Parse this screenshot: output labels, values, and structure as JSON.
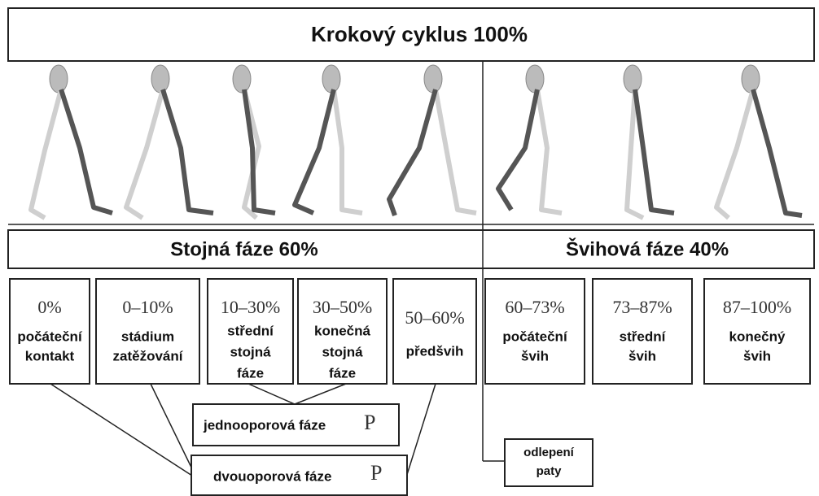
{
  "header": {
    "title": "Krokový cyklus 100%"
  },
  "phases": [
    {
      "label": "Stojná fáze 60%"
    },
    {
      "label": "Švihová fáze 40%"
    }
  ],
  "subphases": [
    {
      "percent": "0%",
      "lines": [
        "počáteční",
        "kontakt"
      ]
    },
    {
      "percent": "0–10%",
      "lines": [
        "stádium",
        "zatěžování"
      ]
    },
    {
      "percent": "10–30%",
      "lines": [
        "střední",
        "stojná",
        "fáze"
      ]
    },
    {
      "percent": "30–50%",
      "lines": [
        "konečná",
        "stojná",
        "fáze"
      ]
    },
    {
      "percent": "50–60%",
      "lines": [
        "předšvih"
      ]
    },
    {
      "percent": "60–73%",
      "lines": [
        "počáteční",
        "švih"
      ]
    },
    {
      "percent": "73–87%",
      "lines": [
        "střední",
        "švih"
      ]
    },
    {
      "percent": "87–100%",
      "lines": [
        "konečný",
        "švih"
      ]
    }
  ],
  "notes": {
    "single_support": {
      "label": "jednooporová fáze",
      "symbol": "P"
    },
    "double_support": {
      "label": "dvouoporová fáze",
      "symbol": "P"
    },
    "heel_off": {
      "lines": [
        "odlepení",
        "paty"
      ]
    }
  }
}
